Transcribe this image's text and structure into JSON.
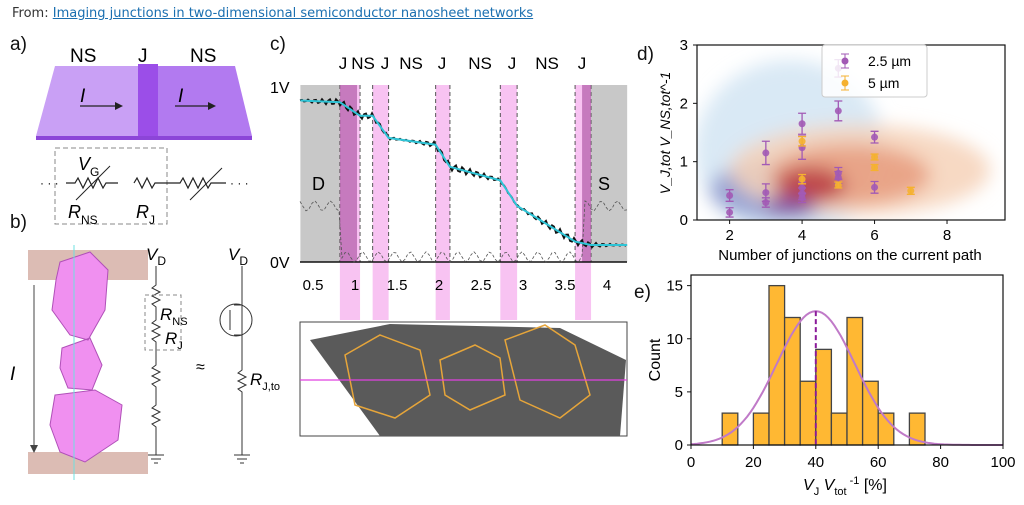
{
  "header": {
    "prefix": "From: ",
    "link_text": "Imaging junctions in two-dimensional semiconductor nanosheet networks"
  },
  "panel_a": {
    "label": "a)",
    "ns_left": "NS",
    "junction": "J",
    "ns_right": "NS",
    "current": "I",
    "vg": "V",
    "vg_sub": "G",
    "rns": "R",
    "rns_sub": "NS",
    "rj": "R",
    "rj_sub": "J",
    "ellipsis": "· · ·"
  },
  "panel_b": {
    "label": "b)",
    "current": "I",
    "vd": "V",
    "vd_sub": "D",
    "rns": "R",
    "rns_sub": "NS",
    "rj": "R",
    "rj_sub": "J",
    "approx": "≈",
    "vd2": "V",
    "vd2_sub": "D",
    "rjtot": "R",
    "rjtot_sub": "J,tot"
  },
  "panel_c": {
    "label": "c)",
    "top_labels": [
      "J",
      "NS",
      "J",
      "NS",
      "J",
      "NS",
      "J",
      "NS",
      "J"
    ],
    "y_top": "1V",
    "y_bottom": "0V",
    "drain": "D",
    "source": "S",
    "x_ticks": [
      "0.5",
      "1",
      "1.5",
      "2",
      "2.5",
      "3",
      "3.5",
      "4"
    ]
  },
  "panel_d": {
    "label": "d)"
  },
  "panel_e": {
    "label": "e)"
  },
  "chart_data": [
    {
      "type": "line",
      "panel": "c",
      "xlim": [
        0.35,
        4.24
      ],
      "ylim": [
        0,
        1
      ],
      "x_ticks": [
        0.5,
        1,
        1.5,
        2,
        2.5,
        3,
        3.5,
        4
      ],
      "fit_line": {
        "x": [
          0.35,
          0.82,
          1.06,
          1.21,
          1.4,
          1.96,
          2.13,
          2.73,
          2.93,
          3.62,
          3.81,
          4.24
        ],
        "y": [
          0.95,
          0.94,
          0.86,
          0.86,
          0.73,
          0.69,
          0.56,
          0.48,
          0.33,
          0.12,
          0.1,
          0.1
        ]
      },
      "junction_regions": [
        [
          0.82,
          1.06
        ],
        [
          1.21,
          1.4
        ],
        [
          1.96,
          2.13
        ],
        [
          2.73,
          2.93
        ],
        [
          3.62,
          3.81
        ]
      ],
      "contact_regions": {
        "drain": [
          0.35,
          0.82
        ],
        "source": [
          3.81,
          4.24
        ]
      },
      "colors": {
        "fit": "#2ec4d6",
        "measured": "#111111",
        "junction": "#f7b8f0",
        "junction_dark": "#b15ba8",
        "contact": "#c8c8c8"
      }
    },
    {
      "type": "scatter",
      "panel": "d",
      "xlabel": "Number of junctions on the current path",
      "ylabel": "V_J,tot V_NS,tot^-1",
      "xlim": [
        1.1,
        9.6
      ],
      "ylim": [
        0,
        3
      ],
      "x_ticks": [
        2,
        4,
        6,
        8
      ],
      "y_ticks": [
        0,
        1,
        2,
        3
      ],
      "legend": "top-right",
      "series": [
        {
          "name": "2.5 µm",
          "color": "#a25ab5",
          "x": [
            2,
            2,
            3,
            3,
            3,
            4,
            4,
            4,
            4,
            4,
            5,
            5,
            5,
            5,
            6,
            6
          ],
          "y": [
            0.42,
            0.13,
            1.15,
            0.47,
            0.3,
            1.65,
            1.24,
            0.55,
            0.45,
            0.38,
            2.6,
            1.87,
            0.8,
            0.73,
            1.42,
            0.56
          ],
          "err": [
            0.1,
            0.08,
            0.2,
            0.15,
            0.08,
            0.18,
            0.2,
            0.1,
            0.1,
            0.08,
            0.15,
            0.17,
            0.1,
            0.1,
            0.1,
            0.1
          ]
        },
        {
          "name": "5 µm",
          "color": "#f5b130",
          "x": [
            4,
            4,
            5,
            6,
            6,
            7
          ],
          "y": [
            1.35,
            0.7,
            0.6,
            1.08,
            0.9,
            0.5
          ],
          "err": [
            0.08,
            0.08,
            0.05,
            0.05,
            0.05,
            0.06
          ]
        }
      ]
    },
    {
      "type": "bar",
      "panel": "e",
      "xlabel": "V_J V_tot^-1 [%]",
      "ylabel": "Count",
      "xlim": [
        0,
        100
      ],
      "ylim": [
        0,
        16
      ],
      "x_ticks": [
        0,
        20,
        40,
        60,
        80,
        100
      ],
      "y_ticks": [
        0,
        5,
        10,
        15
      ],
      "bin_edges": [
        10,
        15,
        20,
        25,
        30,
        35,
        40,
        45,
        50,
        55,
        60,
        65,
        70,
        75
      ],
      "counts": [
        3,
        0,
        3,
        15,
        12,
        6,
        9,
        3,
        12,
        6,
        3,
        0,
        3
      ],
      "gaussian": {
        "mean": 40,
        "sigma": 12.5,
        "peak": 12.6
      },
      "mean_line": 40,
      "colors": {
        "bar": "#ffb833",
        "fit": "#c07ac8",
        "mean": "#8a1a9a"
      }
    }
  ]
}
